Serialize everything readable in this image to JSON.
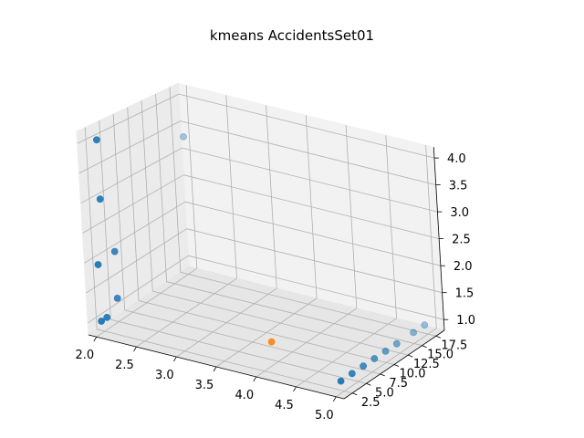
{
  "chart_data": {
    "type": "scatter3d",
    "title": "kmeans AccidentsSet01",
    "xlabel": "",
    "ylabel": "",
    "zlabel": "",
    "xlim": [
      1.9,
      5.1
    ],
    "ylim": [
      1.0,
      19.0
    ],
    "zlim": [
      0.8,
      4.2
    ],
    "x_ticks": [
      "2.0",
      "2.5",
      "3.0",
      "3.5",
      "4.0",
      "4.5",
      "5.0"
    ],
    "y_ticks": [
      "2.5",
      "5.0",
      "7.5",
      "10.0",
      "12.5",
      "15.0",
      "17.5"
    ],
    "z_ticks": [
      "1.0",
      "1.5",
      "2.0",
      "2.5",
      "3.0",
      "3.5",
      "4.0"
    ],
    "grid": true,
    "series": [
      {
        "color": "#1f77b4",
        "points": [
          [
            2.0,
            2.0,
            1.0
          ],
          [
            2.0,
            3.0,
            1.0
          ],
          [
            2.0,
            5.0,
            1.2
          ],
          [
            2.0,
            2.0,
            1.95
          ],
          [
            2.0,
            5.0,
            2.0
          ],
          [
            2.0,
            3.0,
            3.0
          ],
          [
            2.0,
            3.0,
            4.0
          ],
          [
            2.0,
            18.0,
            3.3
          ],
          [
            5.0,
            2.0,
            1.0
          ],
          [
            5.0,
            4.0,
            1.0
          ],
          [
            5.0,
            6.0,
            1.0
          ],
          [
            5.0,
            8.0,
            1.0
          ],
          [
            5.0,
            10.0,
            1.0
          ],
          [
            5.0,
            12.0,
            1.0
          ],
          [
            5.0,
            15.0,
            1.0
          ],
          [
            5.0,
            17.0,
            1.0
          ]
        ]
      },
      {
        "color": "#ff7f0e",
        "points": [
          [
            4.0,
            4.0,
            1.2
          ]
        ]
      }
    ]
  }
}
